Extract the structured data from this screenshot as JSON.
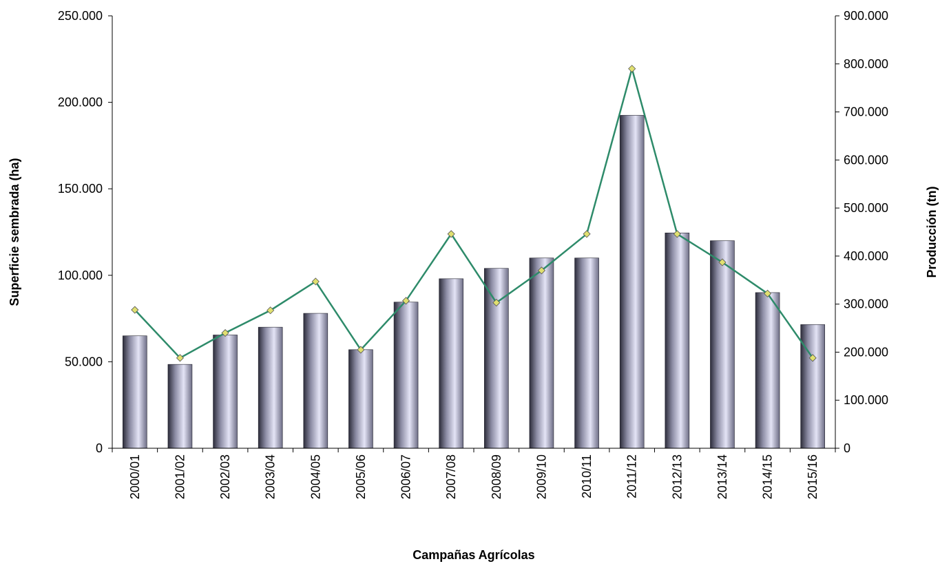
{
  "chart_data": {
    "type": "bar",
    "categories": [
      "2000/01",
      "2001/02",
      "2002/03",
      "2003/04",
      "2004/05",
      "2005/06",
      "2006/07",
      "2007/08",
      "2008/09",
      "2009/10",
      "2010/11",
      "2011/12",
      "2012/13",
      "2013/14",
      "2014/15",
      "2015/16"
    ],
    "series": [
      {
        "type": "bar",
        "axis": "left",
        "values": [
          65000,
          48500,
          65500,
          70000,
          78000,
          57000,
          84500,
          98000,
          104000,
          110000,
          110000,
          192500,
          124500,
          120000,
          90000,
          71500
        ]
      },
      {
        "type": "line",
        "axis": "right",
        "values": [
          288000,
          188000,
          240000,
          287000,
          347000,
          205000,
          307000,
          446000,
          303000,
          370000,
          446000,
          790000,
          446000,
          387000,
          322000,
          188000
        ]
      }
    ],
    "xlabel": "Campañas Agrícolas",
    "ylabel": "Superficie sembrada (ha)",
    "y2label": "Producción (tn)",
    "ylim": [
      0,
      250000
    ],
    "y2lim": [
      0,
      900000
    ],
    "yticks": [
      "0",
      "50.000",
      "100.000",
      "150.000",
      "200.000",
      "250.000"
    ],
    "y2ticks": [
      "0",
      "100.000",
      "200.000",
      "300.000",
      "400.000",
      "500.000",
      "600.000",
      "700.000",
      "800.000",
      "900.000"
    ],
    "grid": false,
    "colors": {
      "bar_dark": "#3a3a4e",
      "bar_light": "#dcdcf0",
      "line": "#2e8b6a",
      "marker": "#e0e070"
    }
  }
}
